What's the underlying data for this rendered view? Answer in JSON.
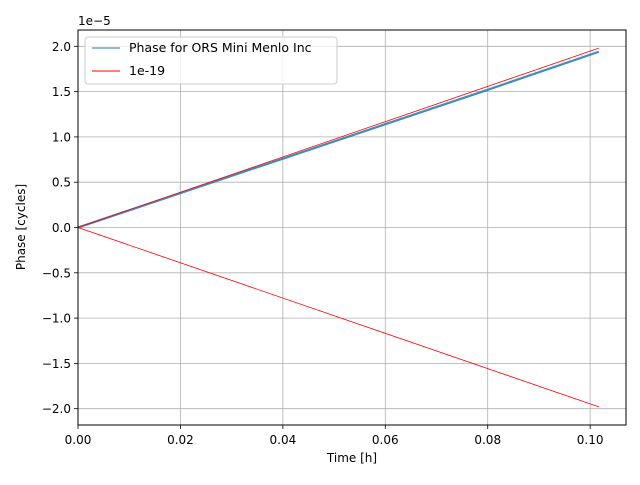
{
  "chart_data": {
    "type": "line",
    "title": "",
    "xlabel": "Time [h]",
    "ylabel": "Phase [cycles]",
    "y_offset_label": "1e−5",
    "xlim": [
      0.0,
      0.107
    ],
    "ylim": [
      -2.18e-05,
      2.18e-05
    ],
    "xticks": [
      0.0,
      0.02,
      0.04,
      0.06,
      0.08,
      0.1
    ],
    "xtick_labels": [
      "0.00",
      "0.02",
      "0.04",
      "0.06",
      "0.08",
      "0.10"
    ],
    "yticks": [
      2e-05,
      1.5e-05,
      1e-05,
      5e-06,
      0.0,
      -5e-06,
      -1e-05,
      -1.5e-05,
      -2e-05
    ],
    "ytick_labels": [
      "2.0",
      "1.5",
      "1.0",
      "0.5",
      "0.0",
      "−0.5",
      "−1.0",
      "−1.5",
      "−2.0"
    ],
    "grid": true,
    "legend_position": "top-left",
    "series": [
      {
        "name": "Phase for ORS Mini Menlo Inc",
        "color": "#1f77b4",
        "x": [
          0.0,
          0.02,
          0.04,
          0.06,
          0.08,
          0.1017
        ],
        "y": [
          0.0,
          3.8e-06,
          7.6e-06,
          1.14e-05,
          1.52e-05,
          1.94e-05
        ]
      },
      {
        "name": "1e-19",
        "color": "#ff0000",
        "x": [
          0.0,
          0.1017
        ],
        "y": [
          0.0,
          1.98e-05
        ]
      },
      {
        "name": "",
        "color": "#ff0000",
        "x": [
          0.0,
          0.1017
        ],
        "y": [
          0.0,
          -1.98e-05
        ]
      }
    ]
  }
}
